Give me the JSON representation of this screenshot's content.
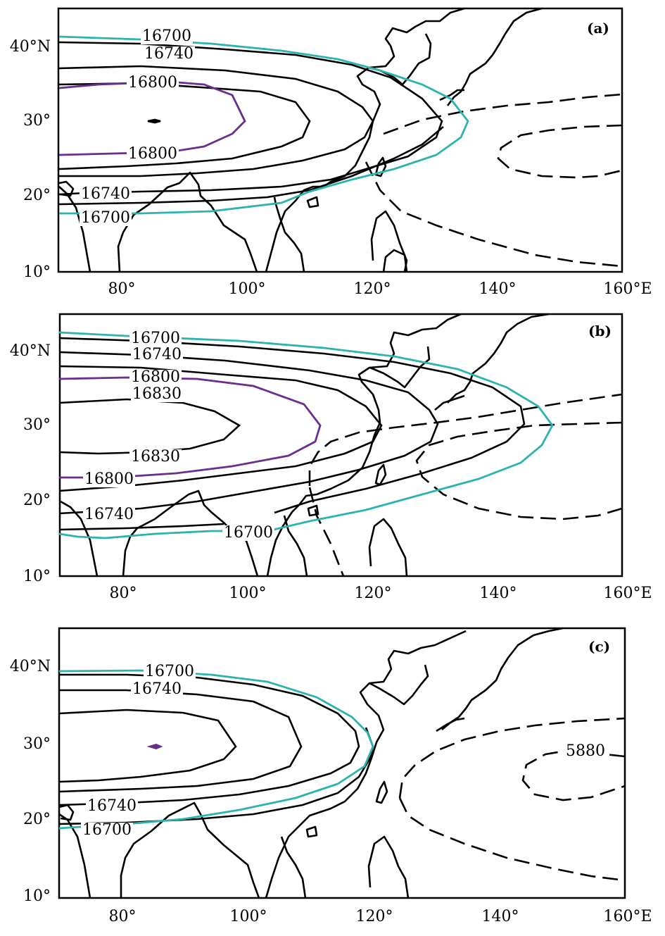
{
  "colors": {
    "teal": "#2bb3ad",
    "purple": "#6a2e8e",
    "black": "#000000"
  },
  "axes": {
    "y_labels": [
      "40°N",
      "30°",
      "20°",
      "10°"
    ],
    "x_labels": [
      "80°",
      "100°",
      "120°",
      "140°",
      "160°E"
    ]
  },
  "panels": [
    {
      "label": "(a)",
      "contour_labels": [
        "16700",
        "16740",
        "16800",
        "16800",
        "16740",
        "16700"
      ]
    },
    {
      "label": "(b)",
      "contour_labels": [
        "16700",
        "16740",
        "16800",
        "16830",
        "16830",
        "16800",
        "16740",
        "16700"
      ]
    },
    {
      "label": "(c)",
      "contour_labels": [
        "16700",
        "16740",
        "16740",
        "16700",
        "5880"
      ]
    }
  ]
}
